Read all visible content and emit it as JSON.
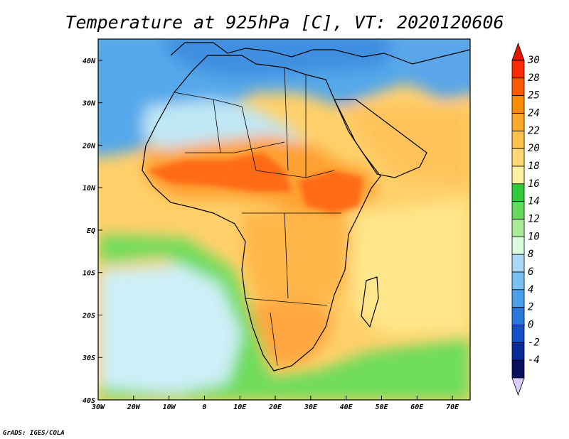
{
  "title": "Temperature at 925hPa [C], VT: 2020120606",
  "credit": "GrADS: IGES/COLA",
  "map": {
    "lon_range": [
      -30,
      75
    ],
    "lat_range": [
      -40,
      45
    ],
    "lat_ticks": [
      {
        "value": 40,
        "label": "40N"
      },
      {
        "value": 30,
        "label": "30N"
      },
      {
        "value": 20,
        "label": "20N"
      },
      {
        "value": 10,
        "label": "10N"
      },
      {
        "value": 0,
        "label": "EQ"
      },
      {
        "value": -10,
        "label": "10S"
      },
      {
        "value": -20,
        "label": "20S"
      },
      {
        "value": -30,
        "label": "30S"
      },
      {
        "value": -40,
        "label": "40S"
      }
    ],
    "lon_ticks": [
      {
        "value": -30,
        "label": "30W"
      },
      {
        "value": -20,
        "label": "20W"
      },
      {
        "value": -10,
        "label": "10W"
      },
      {
        "value": 0,
        "label": "0"
      },
      {
        "value": 10,
        "label": "10E"
      },
      {
        "value": 20,
        "label": "20E"
      },
      {
        "value": 30,
        "label": "30E"
      },
      {
        "value": 40,
        "label": "40E"
      },
      {
        "value": 50,
        "label": "50E"
      },
      {
        "value": 60,
        "label": "60E"
      },
      {
        "value": 70,
        "label": "70E"
      }
    ]
  },
  "colorbar": {
    "levels": [
      "30",
      "28",
      "25",
      "24",
      "22",
      "20",
      "18",
      "16",
      "14",
      "12",
      "10",
      "8",
      "6",
      "4",
      "2",
      "0",
      "-2",
      "-4"
    ],
    "colors": [
      "#ff2a00",
      "#ff5a00",
      "#ff8c00",
      "#ffa726",
      "#ffc04a",
      "#ffd873",
      "#fff0a0",
      "#2ecc3a",
      "#66d85a",
      "#a8ec98",
      "#d8fce0",
      "#a9d8f7",
      "#78bff2",
      "#4c9fea",
      "#2878dd",
      "#1450c8",
      "#0a2c9a",
      "#0a1060"
    ],
    "top_color": "#e01800",
    "bottom_color": "#d8ccf8"
  },
  "regions": {
    "ocean_north": "#55a8ea",
    "sahara_north": "#bfe7f5",
    "sahel": "#ffa033",
    "sahel_core": "#ff6a12",
    "tropics": "#ffd06a",
    "central_africa": "#ffb64a",
    "south_africa": "#ffa640",
    "south_atlantic_cold": "#cdeff8",
    "southern_ocean_green": "#6fdc5c",
    "indian_ocean": "#ffe68a",
    "europe": "#3f8fe0",
    "central_asia": "#5aa6e8",
    "arabia": "#ffc35a",
    "coastline": "#000000"
  }
}
